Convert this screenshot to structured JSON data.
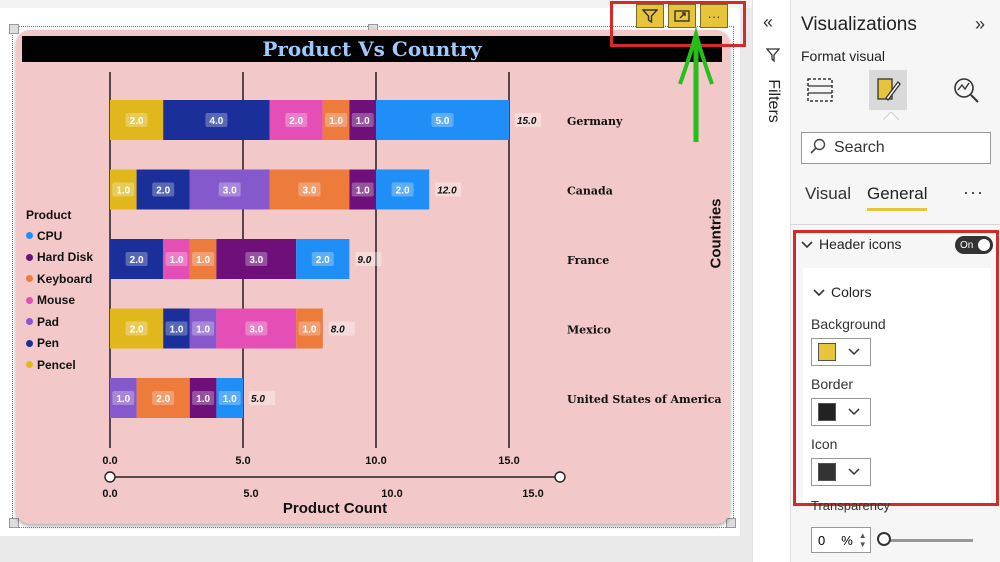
{
  "chart_data": {
    "type": "bar",
    "orientation": "horizontal",
    "stacked": true,
    "title": "Product Vs Country",
    "xlabel": "Product Count",
    "ylabel": "Countries",
    "xlim": [
      0,
      15
    ],
    "x_ticks": [
      "0.0",
      "5.0",
      "10.0",
      "15.0"
    ],
    "legend_title": "Product",
    "legend_position": "left",
    "categories": [
      "Germany",
      "Canada",
      "France",
      "Mexico",
      "United States of America"
    ],
    "series": [
      {
        "name": "Pencel",
        "color": "#e0b81c",
        "values": [
          2.0,
          1.0,
          0,
          2.0,
          0
        ]
      },
      {
        "name": "Pen",
        "color": "#1a2f99",
        "values": [
          4.0,
          2.0,
          2.0,
          1.0,
          0
        ]
      },
      {
        "name": "Pad",
        "color": "#8559cc",
        "values": [
          0,
          3.0,
          0,
          1.0,
          1.0
        ]
      },
      {
        "name": "Mouse",
        "color": "#e54eb4",
        "values": [
          2.0,
          0,
          1.0,
          3.0,
          0
        ]
      },
      {
        "name": "Keyboard",
        "color": "#ec7b3c",
        "values": [
          1.0,
          3.0,
          1.0,
          1.0,
          2.0
        ]
      },
      {
        "name": "Hard Disk",
        "color": "#6e0f7a",
        "values": [
          1.0,
          1.0,
          3.0,
          0,
          1.0
        ]
      },
      {
        "name": "CPU",
        "color": "#1f8ef7",
        "values": [
          5.0,
          2.0,
          2.0,
          0,
          1.0
        ]
      }
    ],
    "totals": [
      "15.0",
      "12.0",
      "9.0",
      "8.0",
      "5.0"
    ],
    "legend_order": [
      "CPU",
      "Hard Disk",
      "Keyboard",
      "Mouse",
      "Pad",
      "Pen",
      "Pencel"
    ],
    "slider_ticks": [
      "0.0",
      "5.0",
      "10.0",
      "15.0"
    ],
    "grid": true
  },
  "header_icons": {
    "filter": "filter-icon",
    "focus": "focus-mode-icon",
    "more": "···"
  },
  "filters": {
    "label": "Filters"
  },
  "viz_pane": {
    "title": "Visualizations",
    "subtitle": "Format visual",
    "search_placeholder": "Search",
    "tabs": [
      "Visual",
      "General"
    ],
    "more": "···",
    "section": "Header icons",
    "toggle": "On",
    "colors_title": "Colors",
    "background_label": "Background",
    "background_color": "#e8c43a",
    "border_label": "Border",
    "border_color": "#222222",
    "icon_label": "Icon",
    "icon_color": "#333333",
    "transparency_label": "Transparency",
    "transparency_value": "0",
    "transparency_unit": "%"
  }
}
